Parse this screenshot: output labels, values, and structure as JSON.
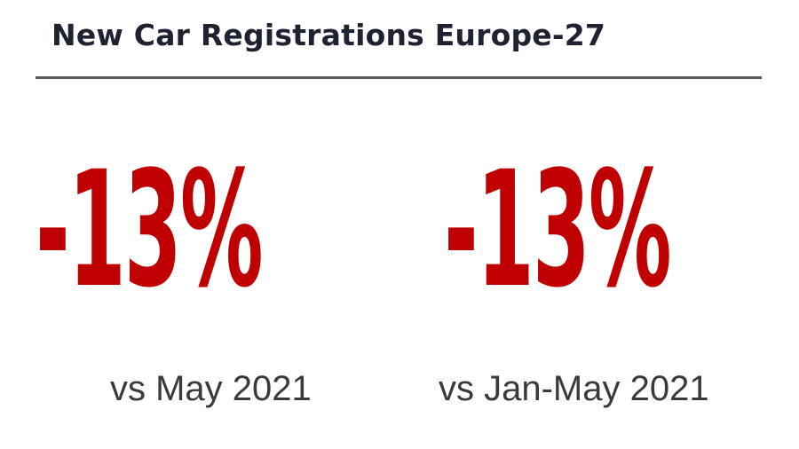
{
  "title": "New Car Registrations Europe-27",
  "stats": [
    {
      "value": "-13%",
      "caption": "vs May 2021"
    },
    {
      "value": "-13%",
      "caption": "vs Jan-May 2021"
    }
  ],
  "colors": {
    "accent": "#c00000",
    "title": "#1f2230",
    "rule": "#58595b",
    "caption": "#3a3a3c"
  }
}
